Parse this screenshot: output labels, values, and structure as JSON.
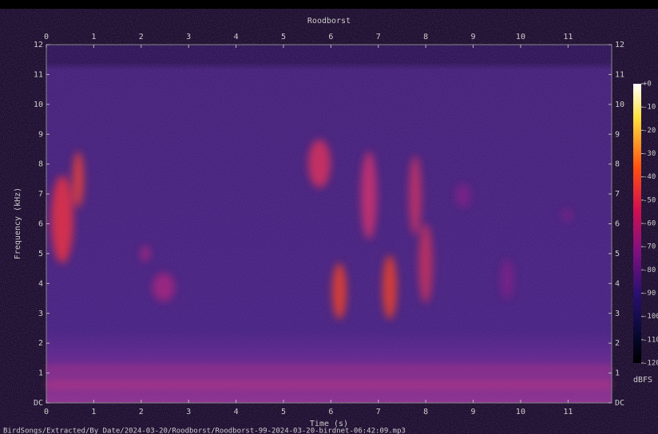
{
  "chart_data": {
    "type": "spectrogram",
    "title": "Roodborst",
    "x_label": "Time (s)",
    "y_label": "Frequency (kHz)",
    "xlim": [
      0,
      11.92
    ],
    "xticks": [
      0,
      1,
      2,
      3,
      4,
      5,
      6,
      7,
      8,
      9,
      10,
      11
    ],
    "ylim": [
      0,
      12
    ],
    "yticks": [
      {
        "value": 0,
        "label": "DC"
      },
      1,
      2,
      3,
      4,
      5,
      6,
      7,
      8,
      9,
      10,
      11,
      12
    ],
    "colorbar": {
      "label": "dBFS",
      "lim": [
        -120,
        0
      ],
      "ticks": [
        {
          "value": 0,
          "label": "+0"
        },
        -10,
        -20,
        -30,
        -40,
        -50,
        -60,
        -70,
        -80,
        -90,
        -100,
        -110,
        -120
      ]
    }
  },
  "footer": "BirdSongs/Extracted/By_Date/2024-03-20/Roodborst/Roodborst-99-2024-03-20-birdnet-06:42:09.mp3"
}
